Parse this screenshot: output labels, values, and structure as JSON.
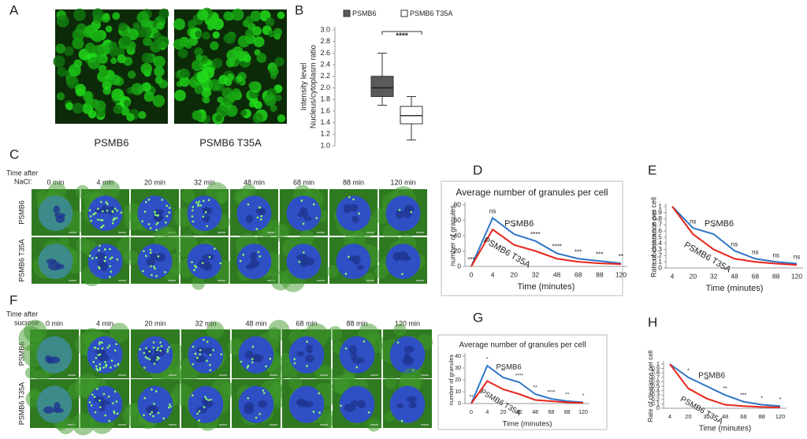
{
  "panel_labels": [
    "A",
    "B",
    "C",
    "D",
    "E",
    "F",
    "G",
    "H"
  ],
  "panel_a": {
    "images": [
      {
        "label": "PSMB6"
      },
      {
        "label": "PSMB6 T35A"
      }
    ]
  },
  "panel_c": {
    "condition": [
      "Time after",
      "NaCl:"
    ],
    "times": [
      "0 min",
      "4 min",
      "20 min",
      "32 min",
      "48 min",
      "68 min",
      "88 min",
      "120 min"
    ],
    "rows": [
      "PSMB6",
      "PSMB6 T35A"
    ]
  },
  "panel_f": {
    "condition": [
      "Time after",
      "sucrose:"
    ],
    "times": [
      "0 min",
      "4 min",
      "20 min",
      "32 min",
      "48 min",
      "68 min",
      "88 min",
      "120 min"
    ],
    "rows": [
      "PSMB6",
      "PSMB6 T35A"
    ]
  },
  "chart_data": [
    {
      "type": "box",
      "y_label": [
        "Intensity level",
        "Nucleus/cytoplasm ratio"
      ],
      "ylim": [
        1.0,
        3.0
      ],
      "yticks": [
        {
          "value": 3.0,
          "label": "3.0"
        },
        2.8,
        2.6,
        2.4,
        2.2,
        {
          "value": 2.0,
          "label": "2.0"
        },
        1.8,
        1.6,
        1.4,
        1.2,
        {
          "value": 1.0,
          "label": "1.0"
        }
      ],
      "series": [
        {
          "name": "PSMB6",
          "color": "#5a5a5a",
          "min": 1.7,
          "q1": 1.85,
          "median": 2.0,
          "q3": 2.2,
          "max": 2.6
        },
        {
          "name": "PSMB6 T35A",
          "color": "#ffffff",
          "min": 1.1,
          "q1": 1.38,
          "median": 1.52,
          "q3": 1.68,
          "max": 1.85
        }
      ],
      "significance": "****"
    },
    {
      "type": "line",
      "title": "Average number of granules per cell",
      "y_label": "number of granules",
      "x_label": "Time (minutes)",
      "categories": [
        0,
        4,
        20,
        32,
        48,
        68,
        88,
        120
      ],
      "ylim": [
        0,
        80
      ],
      "yticks": [
        0,
        20,
        40,
        60,
        80
      ],
      "series": [
        {
          "name": "PSMB6",
          "color": "#2e75c5",
          "values": [
            0,
            63,
            42,
            33,
            17,
            10,
            7,
            4
          ]
        },
        {
          "name": "PSMB6 T35A",
          "color": "#e8251b",
          "values": [
            0,
            48,
            28,
            20,
            10,
            6,
            4,
            3
          ]
        }
      ],
      "annotations": [
        "***",
        "ns",
        "*",
        "****",
        "****",
        "***",
        "***",
        "**"
      ]
    },
    {
      "type": "line",
      "y_label": "Rate of clearance per cell",
      "x_label": "Time (minutes)",
      "categories": [
        4,
        20,
        32,
        48,
        68,
        88,
        120
      ],
      "ylim": [
        0,
        1
      ],
      "yticks": [
        0,
        0.1,
        0.2,
        0.3,
        0.4,
        0.5,
        0.6,
        0.7,
        0.8,
        0.9,
        1
      ],
      "series": [
        {
          "name": "PSMB6",
          "color": "#2e75c5",
          "values": [
            1,
            0.65,
            0.55,
            0.28,
            0.15,
            0.1,
            0.07
          ]
        },
        {
          "name": "PSMB6 T35A",
          "color": "#e8251b",
          "values": [
            1,
            0.55,
            0.3,
            0.15,
            0.1,
            0.07,
            0.05
          ]
        }
      ],
      "annotations": [
        null,
        "ns",
        "*",
        "ns",
        "ns",
        "ns",
        "ns"
      ]
    },
    {
      "type": "line",
      "title": "Average number of granules per cell",
      "y_label": "number of granules",
      "x_label": "Time (minutes)",
      "categories": [
        0,
        4,
        20,
        32,
        48,
        68,
        88,
        120
      ],
      "ylim": [
        0,
        40
      ],
      "yticks": [
        0,
        10,
        20,
        30,
        40
      ],
      "series": [
        {
          "name": "PSMB6",
          "color": "#2e75c5",
          "values": [
            0,
            32,
            22,
            18,
            8,
            4,
            2,
            1
          ]
        },
        {
          "name": "PSMB6 T35A",
          "color": "#e8251b",
          "values": [
            0,
            19,
            12,
            8,
            3,
            2,
            1,
            0.5
          ]
        }
      ],
      "annotations": [
        "**",
        "*",
        "**",
        "****",
        "**",
        "****",
        "**",
        "*"
      ]
    },
    {
      "type": "line",
      "y_label": "Rate of clearance per cell",
      "x_label": "Time (minutes)",
      "categories": [
        4,
        20,
        32,
        48,
        68,
        88,
        120
      ],
      "ylim": [
        0,
        1
      ],
      "yticks": [
        0,
        0.1,
        0.2,
        0.3,
        0.4,
        0.5,
        0.6,
        0.7,
        0.8,
        0.9,
        1
      ],
      "series": [
        {
          "name": "PSMB6",
          "color": "#2e75c5",
          "values": [
            1,
            0.7,
            0.5,
            0.3,
            0.15,
            0.08,
            0.05
          ]
        },
        {
          "name": "PSMB6 T35A",
          "color": "#e8251b",
          "values": [
            1,
            0.45,
            0.22,
            0.08,
            0.05,
            0.03,
            0.02
          ]
        }
      ],
      "annotations": [
        null,
        "*",
        "**",
        "**",
        "***",
        "*",
        "*"
      ]
    }
  ]
}
